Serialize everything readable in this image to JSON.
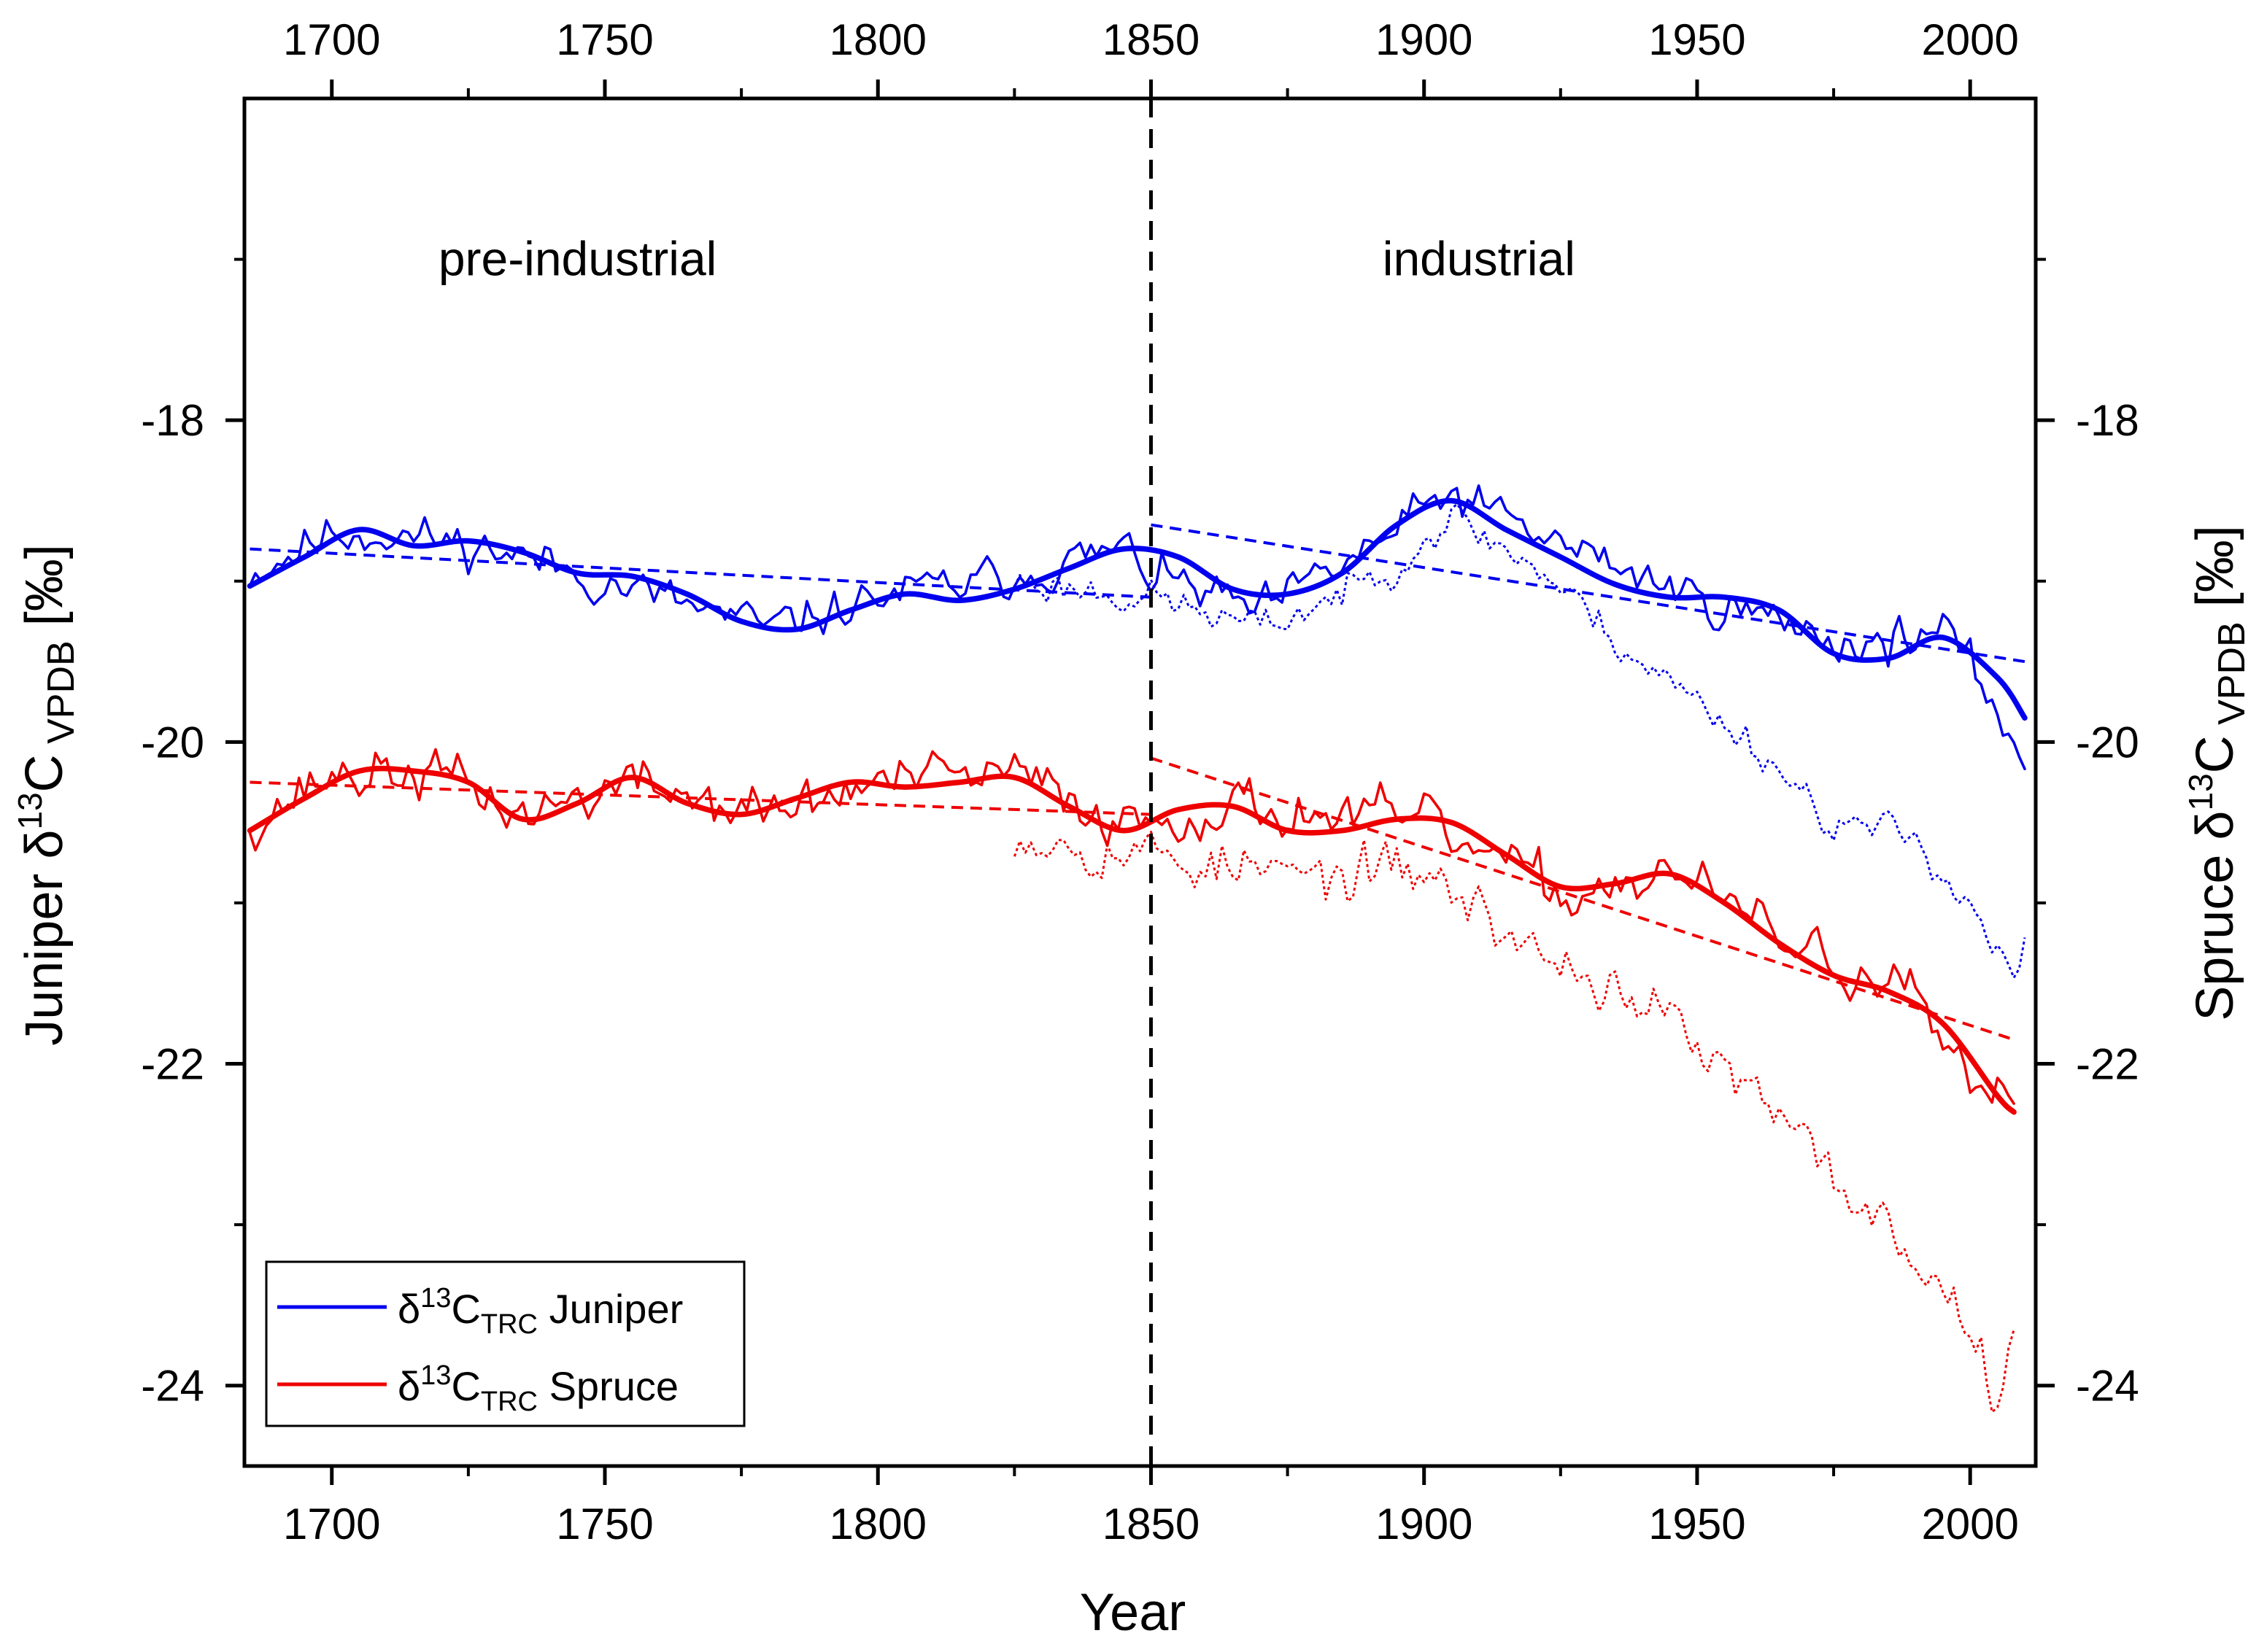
{
  "chart_data": {
    "type": "line",
    "title": "",
    "xlabel": "Year",
    "ylabel_left": "Juniper δ13C VPDB [‰]",
    "ylabel_right": "Spruce δ13C VPDB [‰]",
    "ylabel_left_parts": {
      "prefix": "Juniper δ",
      "sup": "13",
      "main": "C",
      "sub": " VPDB",
      "unit": " [‰]"
    },
    "ylabel_right_parts": {
      "prefix": "Spruce δ",
      "sup": "13",
      "main": "C",
      "sub": " VPDB",
      "unit": " [‰]"
    },
    "xlim": [
      1684,
      2012
    ],
    "ylim": [
      -24.5,
      -16.0
    ],
    "x_ticks": [
      1700,
      1750,
      1800,
      1850,
      1900,
      1950,
      2000
    ],
    "y_ticks": [
      -18,
      -20,
      -22,
      -24
    ],
    "y_minor_ticks": [
      -17,
      -19,
      -21,
      -23
    ],
    "divider_year": 1850,
    "period_labels": [
      {
        "text": "pre-industrial",
        "x": 1745,
        "y": -17.1
      },
      {
        "text": "industrial",
        "x": 1890,
        "y": -17.1
      }
    ],
    "legend": {
      "position": "bottom-left",
      "entries": [
        {
          "prefix": "δ",
          "sup": "13",
          "main": "C",
          "sub": "TRC",
          "label": " Juniper",
          "color": "#0000ee"
        },
        {
          "prefix": "δ",
          "sup": "13",
          "main": "C",
          "sub": "TRC",
          "label": " Spruce",
          "color": "#ee0000"
        }
      ]
    },
    "series": [
      {
        "name": "Juniper δ13C TRC (raw)",
        "color": "#0000ee",
        "style": "thin-solid",
        "x_start": 1685,
        "seed": 11,
        "noise": 0.24,
        "anchors": [
          [
            1685,
            -18.95
          ],
          [
            1700,
            -18.7
          ],
          [
            1710,
            -18.7
          ],
          [
            1730,
            -18.8
          ],
          [
            1750,
            -19.0
          ],
          [
            1780,
            -19.3
          ],
          [
            1800,
            -19.1
          ],
          [
            1820,
            -19.0
          ],
          [
            1845,
            -18.8
          ],
          [
            1850,
            -18.95
          ],
          [
            1870,
            -19.2
          ],
          [
            1890,
            -18.8
          ],
          [
            1905,
            -18.45
          ],
          [
            1920,
            -18.7
          ],
          [
            1950,
            -19.1
          ],
          [
            1980,
            -19.4
          ],
          [
            1995,
            -19.3
          ],
          [
            2005,
            -19.8
          ],
          [
            2010,
            -20.1
          ]
        ]
      },
      {
        "name": "Juniper δ13C TRC (corrected, dotted)",
        "color": "#0000ee",
        "style": "dotted",
        "x_start": 1825,
        "seed": 23,
        "noise": 0.2,
        "anchors": [
          [
            1825,
            -19.0
          ],
          [
            1850,
            -19.1
          ],
          [
            1870,
            -19.3
          ],
          [
            1890,
            -19.0
          ],
          [
            1905,
            -18.6
          ],
          [
            1920,
            -18.9
          ],
          [
            1940,
            -19.5
          ],
          [
            1960,
            -20.0
          ],
          [
            1975,
            -20.5
          ],
          [
            1990,
            -20.6
          ],
          [
            2000,
            -21.0
          ],
          [
            2008,
            -21.5
          ],
          [
            2010,
            -21.3
          ]
        ]
      },
      {
        "name": "Juniper smoothed",
        "color": "#0000ee",
        "style": "thick",
        "x": [
          1685,
          1695,
          1705,
          1715,
          1725,
          1735,
          1745,
          1755,
          1765,
          1775,
          1785,
          1795,
          1805,
          1815,
          1825,
          1835,
          1845,
          1855,
          1865,
          1875,
          1885,
          1895,
          1905,
          1915,
          1925,
          1935,
          1945,
          1955,
          1965,
          1975,
          1985,
          1995,
          2005,
          2010
        ],
        "values": [
          -19.03,
          -18.85,
          -18.68,
          -18.78,
          -18.75,
          -18.82,
          -18.95,
          -18.97,
          -19.08,
          -19.25,
          -19.3,
          -19.18,
          -19.08,
          -19.12,
          -19.05,
          -18.92,
          -18.8,
          -18.85,
          -19.05,
          -19.08,
          -18.95,
          -18.65,
          -18.5,
          -18.68,
          -18.85,
          -19.02,
          -19.1,
          -19.1,
          -19.18,
          -19.45,
          -19.48,
          -19.35,
          -19.6,
          -19.85
        ]
      },
      {
        "name": "Juniper trend pre-industrial",
        "color": "#0000ee",
        "style": "dashed",
        "x": [
          1685,
          1850
        ],
        "values": [
          -18.8,
          -19.1
        ]
      },
      {
        "name": "Juniper trend industrial",
        "color": "#0000ee",
        "style": "dashed",
        "x": [
          1850,
          2010
        ],
        "values": [
          -18.65,
          -19.5
        ]
      },
      {
        "name": "Spruce δ13C TRC (raw)",
        "color": "#ee0000",
        "style": "thin-solid",
        "x_start": 1685,
        "seed": 37,
        "noise": 0.28,
        "anchors": [
          [
            1685,
            -20.5
          ],
          [
            1700,
            -20.2
          ],
          [
            1720,
            -20.2
          ],
          [
            1735,
            -20.45
          ],
          [
            1755,
            -20.25
          ],
          [
            1780,
            -20.45
          ],
          [
            1800,
            -20.25
          ],
          [
            1825,
            -20.2
          ],
          [
            1845,
            -20.5
          ],
          [
            1865,
            -20.4
          ],
          [
            1900,
            -20.5
          ],
          [
            1925,
            -20.95
          ],
          [
            1945,
            -20.8
          ],
          [
            1970,
            -21.3
          ],
          [
            1990,
            -21.6
          ],
          [
            2000,
            -22.2
          ],
          [
            2008,
            -22.3
          ]
        ]
      },
      {
        "name": "Spruce δ13C TRC (corrected, dotted)",
        "color": "#ee0000",
        "style": "dotted",
        "x_start": 1825,
        "seed": 53,
        "noise": 0.3,
        "anchors": [
          [
            1825,
            -20.55
          ],
          [
            1850,
            -20.7
          ],
          [
            1880,
            -20.85
          ],
          [
            1900,
            -20.8
          ],
          [
            1920,
            -21.3
          ],
          [
            1940,
            -21.6
          ],
          [
            1960,
            -22.2
          ],
          [
            1975,
            -22.7
          ],
          [
            1990,
            -23.2
          ],
          [
            2000,
            -23.6
          ],
          [
            2005,
            -24.0
          ],
          [
            2008,
            -23.5
          ]
        ]
      },
      {
        "name": "Spruce smoothed",
        "color": "#ee0000",
        "style": "thick",
        "x": [
          1685,
          1695,
          1705,
          1715,
          1725,
          1735,
          1745,
          1755,
          1765,
          1775,
          1785,
          1795,
          1805,
          1815,
          1825,
          1835,
          1845,
          1855,
          1865,
          1875,
          1885,
          1895,
          1905,
          1915,
          1925,
          1935,
          1945,
          1955,
          1965,
          1975,
          1985,
          1995,
          2005,
          2008
        ],
        "values": [
          -20.55,
          -20.35,
          -20.18,
          -20.18,
          -20.25,
          -20.48,
          -20.38,
          -20.22,
          -20.38,
          -20.45,
          -20.35,
          -20.25,
          -20.28,
          -20.25,
          -20.22,
          -20.4,
          -20.55,
          -20.42,
          -20.4,
          -20.55,
          -20.55,
          -20.48,
          -20.5,
          -20.7,
          -20.9,
          -20.88,
          -20.82,
          -21.0,
          -21.25,
          -21.45,
          -21.55,
          -21.75,
          -22.2,
          -22.3
        ]
      },
      {
        "name": "Spruce trend pre-industrial",
        "color": "#ee0000",
        "style": "dashed",
        "x": [
          1685,
          1850
        ],
        "values": [
          -20.25,
          -20.45
        ]
      },
      {
        "name": "Spruce trend industrial",
        "color": "#ee0000",
        "style": "dashed",
        "x": [
          1850,
          2008
        ],
        "values": [
          -20.1,
          -21.85
        ]
      }
    ]
  }
}
